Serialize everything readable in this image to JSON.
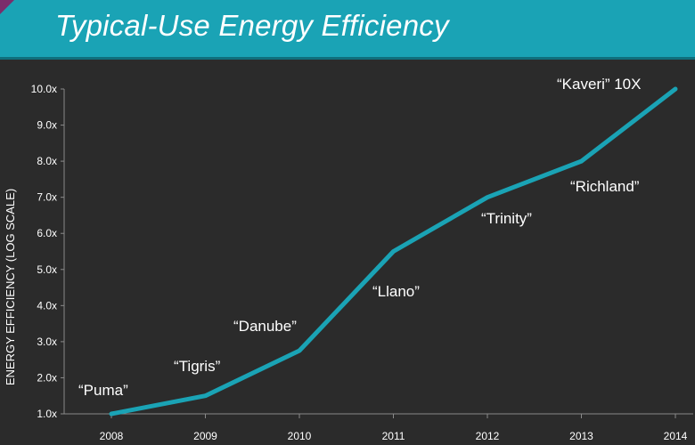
{
  "title": "Typical-Use Energy Efficiency",
  "colors": {
    "title_bar": "#1aa3b5",
    "background": "#2b2b2b",
    "line": "#1aa3b5",
    "text": "#ffffff",
    "accent": "#7b2d6b"
  },
  "chart_data": {
    "type": "line",
    "ylabel": "ENERGY EFFICIENCY (LOG SCALE)",
    "xlabel": "",
    "categories": [
      "2008",
      "2009",
      "2010",
      "2011",
      "2012",
      "2013",
      "2014"
    ],
    "y_ticks": [
      "1.0x",
      "2.0x",
      "3.0x",
      "4.0x",
      "5.0x",
      "6.0x",
      "7.0x",
      "8.0x",
      "9.0x",
      "10.0x"
    ],
    "ylim": [
      1,
      10
    ],
    "series": [
      {
        "values": [
          1.0,
          1.5,
          2.75,
          5.5,
          7.0,
          8.0,
          10.0
        ]
      }
    ],
    "annotations": [
      "“Puma”",
      "“Tigris”",
      "“Danube”",
      "“Llano”",
      "“Trinity”",
      "“Richland”",
      "“Kaveri” 10X"
    ],
    "grid": false
  }
}
